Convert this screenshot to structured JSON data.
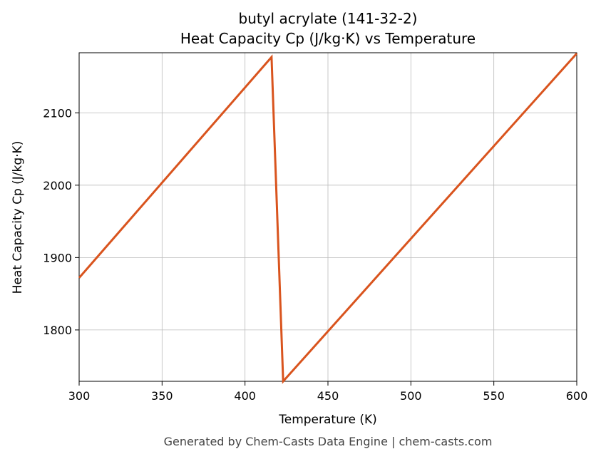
{
  "chart_data": {
    "type": "line",
    "title": [
      "butyl acrylate (141-32-2)",
      "Heat Capacity Cp (J/kg·K) vs Temperature"
    ],
    "x_label": "Temperature (K)",
    "y_label": "Heat Capacity Cp (J/kg·K)",
    "footer": "Generated by Chem-Casts Data Engine | chem-casts.com",
    "x": [
      300,
      416,
      423,
      600
    ],
    "series": [
      {
        "color": "#d9541e",
        "values": [
          1872,
          2177,
          1729,
          2182
        ]
      }
    ],
    "xlim": [
      300,
      600
    ],
    "xticks": [
      300,
      350,
      400,
      450,
      500,
      550,
      600
    ],
    "ylim": [
      1729,
      2183
    ],
    "yticks": [
      1800,
      1900,
      2000,
      2100
    ],
    "grid": true
  }
}
